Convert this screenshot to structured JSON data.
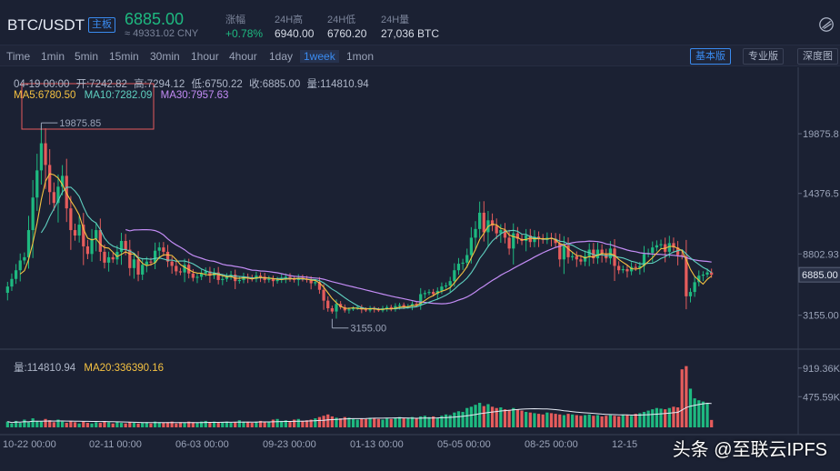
{
  "header": {
    "pair": "BTC/USDT",
    "badge": "主板",
    "price": "6885.00",
    "price_cny": "≈ 49331.02 CNY",
    "stats": [
      {
        "label": "涨幅",
        "value": "+0.78%",
        "up": true
      },
      {
        "label": "24H高",
        "value": "6940.00",
        "up": false
      },
      {
        "label": "24H低",
        "value": "6760.20",
        "up": false
      },
      {
        "label": "24H量",
        "value": "27,036 BTC",
        "up": false
      }
    ]
  },
  "toolbar": {
    "timeframes": [
      "Time",
      "1min",
      "5min",
      "15min",
      "30min",
      "1hour",
      "4hour",
      "1day",
      "1week",
      "1mon"
    ],
    "active_timeframe": "1week",
    "views": [
      "基本版",
      "专业版",
      "深度图"
    ],
    "active_view": "基本版"
  },
  "legend": {
    "ohlc": [
      "04-19 00:00",
      "开:7242.82",
      "高:7294.12",
      "低:6750.22",
      "收:6885.00",
      "量:114810.94"
    ],
    "ma5": "MA5:6780.50",
    "ma10": "MA10:7282.09",
    "ma30": "MA30:7957.63",
    "volume": "量:114810.94",
    "volume_ma20": "MA20:336390.16"
  },
  "colors": {
    "up": "#1eb980",
    "down": "#e55c5c",
    "ma5": "#f5c242",
    "ma10": "#5fd0c0",
    "ma30": "#c38cf5",
    "accent": "#3a8bf0"
  },
  "annotations": {
    "max_label": "19875.85",
    "min_label": "3155.00"
  },
  "watermark": "头条 @至联云IPFS",
  "chart_data": {
    "type": "candlestick",
    "price_axis": {
      "ticks": [
        19875.85,
        14376.55,
        8802.93,
        3155.0
      ],
      "tick_labels": [
        "19875.8",
        "14376.5",
        "8802.93",
        "3155.00"
      ],
      "current_label": "6885.00",
      "range": [
        700,
        26000
      ]
    },
    "volume_axis": {
      "ticks": [
        919360,
        475590
      ],
      "tick_labels": [
        "919.36K",
        "475.59K"
      ]
    },
    "x_labels": [
      "10-22 00:00",
      "02-11 00:00",
      "06-03 00:00",
      "09-23 00:00",
      "01-13 00:00",
      "05-05 00:00",
      "08-25 00:00",
      "12-15"
    ],
    "close": [
      5800,
      6500,
      7300,
      8200,
      8500,
      11000,
      14000,
      16500,
      19000,
      17000,
      14500,
      13500,
      15000,
      16000,
      13000,
      11000,
      10500,
      11500,
      9500,
      8800,
      10200,
      11000,
      9000,
      8000,
      8500,
      8300,
      9000,
      10000,
      9200,
      7500,
      8300,
      6900,
      7800,
      8100,
      8000,
      9100,
      9400,
      9000,
      8100,
      7700,
      7200,
      7100,
      7800,
      7000,
      6600,
      6700,
      7000,
      7200,
      6800,
      7100,
      6400,
      6500,
      6700,
      6900,
      6300,
      6400,
      6700,
      6600,
      6500,
      6800,
      6700,
      6400,
      6500,
      6300,
      6400,
      6600,
      6700,
      6500,
      6400,
      6600,
      6500,
      6400,
      6100,
      6200,
      5500,
      4500,
      3800,
      3500,
      4200,
      3900,
      3600,
      3700,
      3800,
      3900,
      3700,
      3600,
      3800,
      3700,
      3600,
      3800,
      3900,
      3700,
      4000,
      4100,
      3900,
      4000,
      4200,
      4100,
      5100,
      5200,
      5300,
      5100,
      5400,
      5800,
      5900,
      6300,
      7300,
      7900,
      8000,
      8700,
      10300,
      11100,
      12600,
      10800,
      11900,
      11400,
      10700,
      11000,
      10300,
      9300,
      10700,
      10200,
      10000,
      10500,
      9900,
      10400,
      10200,
      10100,
      10300,
      10200,
      9800,
      8300,
      9600,
      8500,
      8600,
      8300,
      8100,
      8600,
      9200,
      8400,
      9200,
      8800,
      8400,
      9300,
      7700,
      7300,
      7400,
      7200,
      7600,
      7500,
      7700,
      8800,
      8900,
      9400,
      9600,
      9700,
      9000,
      9800,
      9400,
      8700,
      8600,
      4900,
      5300,
      6200,
      6800,
      6900,
      7100,
      6885
    ],
    "volume": [
      90,
      60,
      100,
      70,
      120,
      80,
      140,
      100,
      90,
      130,
      110,
      80,
      120,
      90,
      70,
      100,
      80,
      60,
      90,
      70,
      60,
      80,
      70,
      90,
      80,
      60,
      90,
      70,
      60,
      80,
      70,
      60,
      70,
      80,
      60,
      90,
      80,
      70,
      80,
      90,
      60,
      80,
      70,
      90,
      80,
      70,
      90,
      100,
      80,
      90,
      70,
      80,
      90,
      70,
      80,
      110,
      90,
      80,
      70,
      90,
      100,
      80,
      90,
      120,
      130,
      100,
      110,
      90,
      120,
      130,
      100,
      110,
      120,
      140,
      160,
      180,
      200,
      170,
      150,
      140,
      160,
      150,
      130,
      120,
      140,
      130,
      150,
      140,
      130,
      120,
      140,
      130,
      150,
      160,
      140,
      150,
      160,
      140,
      170,
      180,
      160,
      170,
      150,
      180,
      200,
      190,
      230,
      250,
      240,
      300,
      320,
      350,
      380,
      330,
      360,
      320,
      300,
      310,
      280,
      270,
      300,
      280,
      260,
      240,
      230,
      220,
      210,
      200,
      230,
      220,
      210,
      200,
      190,
      210,
      200,
      190,
      180,
      190,
      200,
      180,
      190,
      170,
      180,
      190,
      180,
      170,
      200,
      190,
      180,
      210,
      220,
      240,
      260,
      280,
      300,
      290,
      280,
      300,
      320,
      310,
      900,
      950,
      600,
      450,
      420,
      400,
      380,
      115
    ]
  }
}
